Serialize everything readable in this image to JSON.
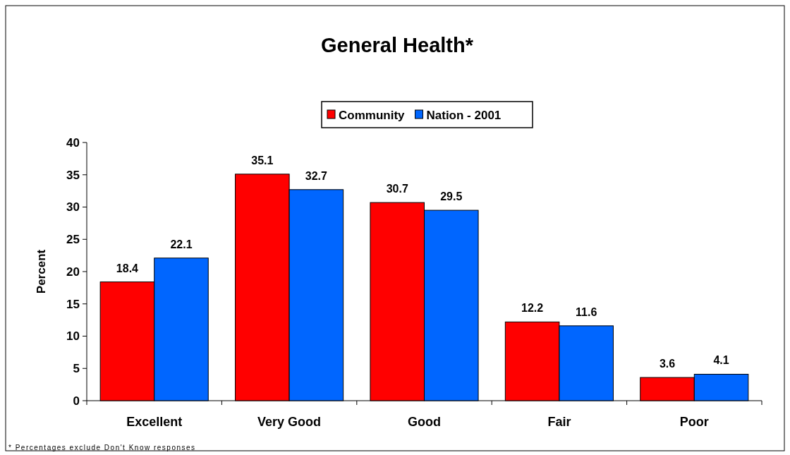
{
  "chart_data": {
    "type": "bar",
    "title": "General Health*",
    "ylabel": "Percent",
    "categories": [
      "Excellent",
      "Very Good",
      "Good",
      "Fair",
      "Poor"
    ],
    "series": [
      {
        "name": "Community",
        "color": "#ff0000",
        "values": [
          18.4,
          35.1,
          30.7,
          12.2,
          3.6
        ]
      },
      {
        "name": "Nation - 2001",
        "color": "#0066ff",
        "values": [
          22.1,
          32.7,
          29.5,
          11.6,
          4.1
        ]
      }
    ],
    "ylim": [
      0,
      40
    ],
    "yticks": [
      0,
      5,
      10,
      15,
      20,
      25,
      30,
      35,
      40
    ],
    "grid": false,
    "legend": "top",
    "data_labels": true,
    "annotations": [
      "* Percentages exclude Don't Know responses"
    ]
  }
}
